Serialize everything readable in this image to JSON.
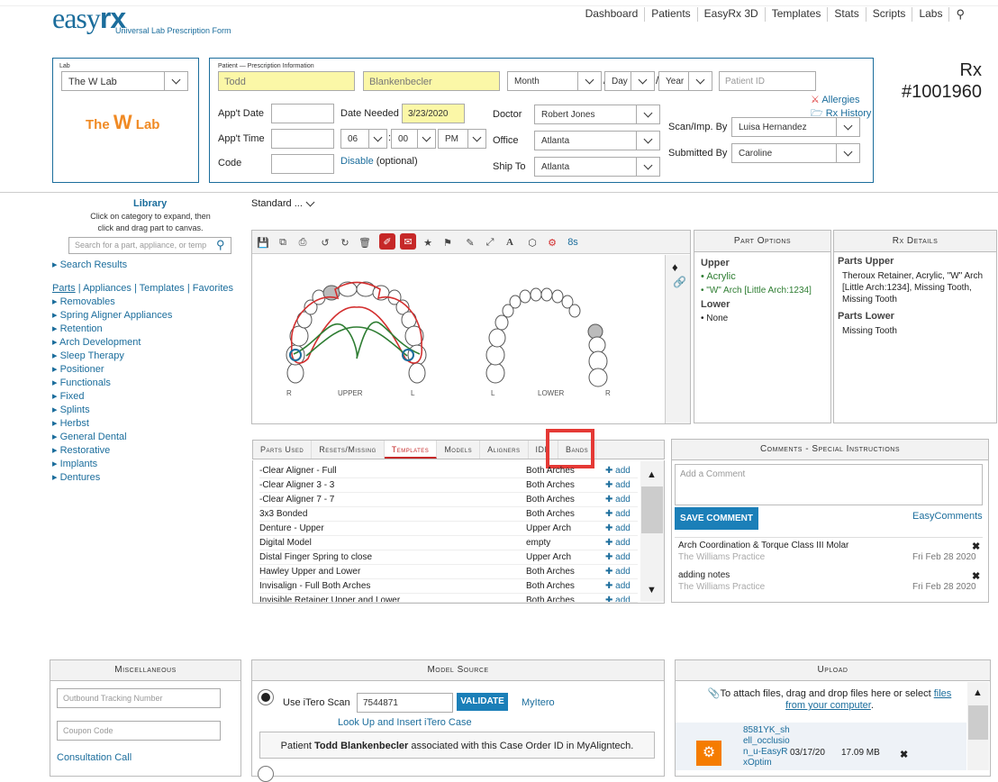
{
  "header": {
    "logo_easy": "easy",
    "logo_rx": "rx",
    "subtitle": "Universal Lab Prescription Form"
  },
  "nav": [
    "Dashboard",
    "Patients",
    "EasyRx 3D",
    "Templates",
    "Stats",
    "Scripts",
    "Labs"
  ],
  "lab": {
    "label": "Lab",
    "selected": "The W Lab",
    "logo_pre": "The ",
    "logo_w": "W",
    "logo_post": " Lab"
  },
  "patient": {
    "label": "Patient — Prescription Information",
    "first": "Todd",
    "last": "Blankenbecler",
    "month": "Month",
    "day": "Day",
    "year": "Year",
    "patient_id_ph": "Patient ID",
    "allergies": "Allergies",
    "rx_history": "Rx History",
    "appt_date_label": "App't Date",
    "appt_time_label": "App't Time",
    "code_label": "Code",
    "date_needed_label": "Date Needed",
    "date_needed": "3/23/2020",
    "hour": "06",
    "minute": "00",
    "ampm": "PM",
    "disable": "Disable",
    "optional": " (optional)",
    "doctor_label": "Doctor",
    "doctor": "Robert Jones",
    "office_label": "Office",
    "office": "Atlanta",
    "ship_label": "Ship To",
    "ship": "Atlanta",
    "scan_label": "Scan/Imp. By",
    "scan": "Luisa Hernandez",
    "submitted_label": "Submitted By",
    "submitted": "Caroline"
  },
  "rx": {
    "label": "Rx",
    "number": "#1001960"
  },
  "library": {
    "title": "Library",
    "help": "Click on category to expand, then click and drag part to canvas.",
    "search_ph": "Search for a part, appliance, or temp",
    "search_results": "Search Results",
    "tabs": [
      "Parts",
      "Appliances",
      "Templates",
      "Favorites"
    ],
    "categories": [
      "Removables",
      "Spring Aligner Appliances",
      "Retention",
      "Arch Development",
      "Sleep Therapy",
      "Positioner",
      "Functionals",
      "Fixed",
      "Splints",
      "Herbst",
      "General Dental",
      "Restorative",
      "Implants",
      "Dentures"
    ]
  },
  "canvas": {
    "standard": "Standard ...",
    "zoom_label": "8s",
    "upper": "UPPER",
    "lower": "LOWER",
    "r": "R",
    "l": "L"
  },
  "part_options": {
    "title": "Part Options",
    "upper": "Upper",
    "upper_items": [
      "Acrylic",
      "\"W\" Arch [Little Arch:1234]"
    ],
    "lower": "Lower",
    "lower_items": [
      "None"
    ]
  },
  "rx_details": {
    "title": "Rx Details",
    "parts_upper": "Parts Upper",
    "upper_text": "Theroux Retainer, Acrylic, \"W\" Arch [Little Arch:1234], Missing Tooth, Missing Tooth",
    "parts_lower": "Parts Lower",
    "lower_text": "Missing Tooth"
  },
  "bottom_tabs": [
    "Parts Used",
    "Resets/Missing",
    "Templates",
    "Models",
    "Aligners",
    "IDB",
    "Bands"
  ],
  "templates": [
    {
      "name": "-Clear Aligner - Full",
      "arch": "Both Arches",
      "add": "add"
    },
    {
      "name": "-Clear Aligner 3 - 3",
      "arch": "Both Arches",
      "add": "add"
    },
    {
      "name": "-Clear Aligner 7 - 7",
      "arch": "Both Arches",
      "add": "add"
    },
    {
      "name": "3x3 Bonded",
      "arch": "Both Arches",
      "add": "add"
    },
    {
      "name": "Denture - Upper",
      "arch": "Upper Arch",
      "add": "add"
    },
    {
      "name": "Digital Model",
      "arch": "empty",
      "add": "add"
    },
    {
      "name": "Distal Finger Spring to close",
      "arch": "Upper Arch",
      "add": "add"
    },
    {
      "name": "Hawley Upper and Lower",
      "arch": "Both Arches",
      "add": "add"
    },
    {
      "name": "Invisalign - Full Both Arches",
      "arch": "Both Arches",
      "add": "add"
    },
    {
      "name": "Invisible Retainer Upper and Lower",
      "arch": "Both Arches",
      "add": "add"
    }
  ],
  "comments": {
    "title": "Comments - Special Instructions",
    "placeholder": "Add a Comment",
    "save": "SAVE COMMENT",
    "easy": "EasyComments",
    "items": [
      {
        "text": "Arch Coordination & Torque Class III Molar",
        "by": "The Williams Practice",
        "date": "Fri Feb 28 2020"
      },
      {
        "text": "adding notes",
        "by": "The Williams Practice",
        "date": "Fri Feb 28 2020"
      }
    ]
  },
  "misc": {
    "title": "Miscellaneous",
    "tracking_ph": "Outbound Tracking Number",
    "coupon_ph": "Coupon Code",
    "consult": "Consultation Call"
  },
  "model_source": {
    "title": "Model Source",
    "use_itero": "Use iTero Scan",
    "itero_val": "7544871",
    "validate": "VALIDATE",
    "myitero": "MyItero",
    "lookup": "Look Up and Insert iTero Case",
    "assoc_pre": "Patient ",
    "assoc_name": "Todd Blankenbecler",
    "assoc_post": " associated with this Case Order ID in MyAligntech."
  },
  "upload": {
    "title": "Upload",
    "hint": "To attach files, drag and drop files here or select ",
    "files_link": "files from your computer",
    "period": ".",
    "file_name": "8581YK_shell_occlusion_u-EasyRxOptim",
    "file_date": "03/17/20",
    "file_size": "17.09 MB"
  },
  "colors": {
    "brand": "#1b6d9c",
    "highlight": "#e53935",
    "yellow": "#fbf7a7"
  }
}
